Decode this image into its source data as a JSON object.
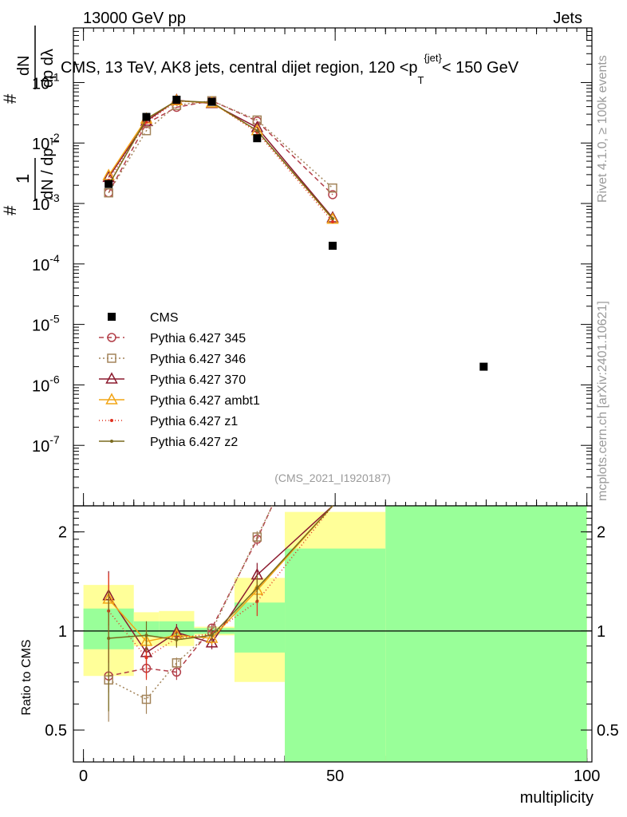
{
  "header": {
    "left": "13000 GeV pp",
    "right": "Jets"
  },
  "side_labels": {
    "rivet": "Rivet 4.1.0, ≥ 100k events",
    "site": "mcplots.cern.ch [arXiv:2401.10621]"
  },
  "colors": {
    "data": "#000000",
    "p345": "#b3404a",
    "p346": "#a3845a",
    "p370": "#8b1a2e",
    "ambt1": "#f2a516",
    "z1": "#e0301e",
    "z2": "#7a6a1e",
    "band_yellow": "#ffff99",
    "band_green": "#99ff99"
  },
  "chart_data": [
    {
      "type": "line",
      "panel": "main",
      "title": "CMS, 13 TeV, AK8 jets, central dijet region, 120 <p_T^{jet}< 150 GeV",
      "ylabel_parts": {
        "frac1_num": "1",
        "frac1_den": "dN / dp",
        "sub_T": "T",
        "frac2_num": "dN",
        "frac2_den": "dp  dλ",
        "hash": "#"
      },
      "yscale": "log",
      "ylim": [
        1e-08,
        0.8
      ],
      "xlim": [
        -2,
        101
      ],
      "yticks": [
        {
          "v": 1e-07,
          "m": "10",
          "e": "-7"
        },
        {
          "v": 1e-06,
          "m": "10",
          "e": "-6"
        },
        {
          "v": 1e-05,
          "m": "10",
          "e": "-5"
        },
        {
          "v": 0.0001,
          "m": "10",
          "e": "-4"
        },
        {
          "v": 0.001,
          "m": "10",
          "e": "-3"
        },
        {
          "v": 0.01,
          "m": "10",
          "e": "-2"
        },
        {
          "v": 0.1,
          "m": "10",
          "e": "-1"
        }
      ],
      "watermark": "(CMS_2021_I1920187)",
      "data": {
        "name": "CMS",
        "x": [
          5,
          12.5,
          18.5,
          25.5,
          34.5,
          49.5,
          79.5
        ],
        "y": [
          0.0021,
          0.027,
          0.052,
          0.048,
          0.012,
          0.0002,
          2e-06
        ]
      },
      "series": [
        {
          "key": "p345",
          "name": "Pythia 6.427 345",
          "dash": "6,4",
          "marker": "circle",
          "x": [
            5,
            12.5,
            18.5,
            25.5,
            34.5,
            49.5
          ],
          "y": [
            0.0015,
            0.021,
            0.039,
            0.05,
            0.023,
            0.0014
          ]
        },
        {
          "key": "p346",
          "name": "Pythia 6.427 346",
          "dash": "2,3",
          "marker": "square",
          "x": [
            5,
            12.5,
            18.5,
            25.5,
            34.5,
            49.5
          ],
          "y": [
            0.0015,
            0.016,
            0.042,
            0.05,
            0.024,
            0.0018
          ]
        },
        {
          "key": "p370",
          "name": "Pythia 6.427 370",
          "dash": "",
          "marker": "triangle",
          "x": [
            5,
            12.5,
            18.5,
            25.5,
            34.5,
            49.5
          ],
          "y": [
            0.0027,
            0.023,
            0.051,
            0.045,
            0.018,
            0.00058
          ]
        },
        {
          "key": "ambt1",
          "name": "Pythia 6.427 ambt1",
          "dash": "",
          "marker": "triangle",
          "x": [
            5,
            12.5,
            18.5,
            25.5,
            34.5,
            49.5
          ],
          "y": [
            0.0029,
            0.025,
            0.05,
            0.046,
            0.016,
            0.00055
          ]
        },
        {
          "key": "z1",
          "name": "Pythia 6.427 z1",
          "dash": "1,3",
          "marker": "dot",
          "x": [
            5,
            12.5,
            18.5,
            25.5,
            34.5,
            49.5
          ],
          "y": [
            0.0024,
            0.022,
            0.049,
            0.047,
            0.015,
            0.0005
          ]
        },
        {
          "key": "z2",
          "name": "Pythia 6.427 z2",
          "dash": "",
          "marker": "dot",
          "x": [
            5,
            12.5,
            18.5,
            25.5,
            34.5,
            49.5
          ],
          "y": [
            0.002,
            0.025,
            0.05,
            0.047,
            0.016,
            0.00056
          ]
        }
      ]
    },
    {
      "type": "line",
      "panel": "ratio",
      "ylabel": "Ratio to CMS",
      "xlabel": "multiplicity",
      "yscale": "log",
      "ylim": [
        0.4,
        2.4
      ],
      "xlim": [
        -2,
        101
      ],
      "xticks": [
        0,
        50,
        100
      ],
      "yticks": [
        0.5,
        1,
        2
      ],
      "bands": [
        {
          "x0": 0,
          "x1": 10,
          "yellow": [
            0.73,
            1.38
          ],
          "green": [
            0.88,
            1.17
          ]
        },
        {
          "x0": 10,
          "x1": 15,
          "yellow": [
            0.9,
            1.14
          ],
          "green": [
            0.96,
            1.07
          ]
        },
        {
          "x0": 15,
          "x1": 22,
          "yellow": [
            0.9,
            1.15
          ],
          "green": [
            0.96,
            1.07
          ]
        },
        {
          "x0": 22,
          "x1": 30,
          "yellow": [
            0.97,
            1.03
          ],
          "green": [
            0.98,
            1.02
          ]
        },
        {
          "x0": 30,
          "x1": 40,
          "yellow": [
            0.7,
            1.45
          ],
          "green": [
            0.86,
            1.22
          ]
        },
        {
          "x0": 40,
          "x1": 60,
          "yellow": [
            0.4,
            2.3
          ],
          "green": [
            0.4,
            1.78
          ]
        },
        {
          "x0": 60,
          "x1": 100,
          "yellow": [
            0.4,
            2.4
          ],
          "green": [
            0.4,
            2.4
          ]
        }
      ],
      "series": [
        {
          "key": "p345",
          "x": [
            5,
            12.5,
            18.5,
            25.5,
            34.5,
            37.5
          ],
          "y": [
            0.73,
            0.77,
            0.75,
            1.02,
            1.9,
            2.4
          ],
          "err": [
            0.08,
            0.05,
            0.04,
            0.03,
            0.08,
            0
          ]
        },
        {
          "key": "p346",
          "x": [
            5,
            12.5,
            18.5,
            25.5,
            34.5,
            37.5
          ],
          "y": [
            0.71,
            0.62,
            0.8,
            1.0,
            1.93,
            2.4
          ],
          "err": [
            0.18,
            0.06,
            0.03,
            0.03,
            0.08,
            0
          ]
        },
        {
          "key": "p370",
          "x": [
            5,
            12.5,
            18.5,
            25.5,
            34.5,
            49.5
          ],
          "y": [
            1.28,
            0.86,
            0.99,
            0.92,
            1.48,
            2.4
          ],
          "err": [
            0.24,
            0.1,
            0.06,
            0.04,
            0.13,
            0
          ]
        },
        {
          "key": "ambt1",
          "x": [
            5,
            12.5,
            18.5,
            25.5,
            34.5,
            49.5
          ],
          "y": [
            1.25,
            0.93,
            0.97,
            0.95,
            1.33,
            2.4
          ],
          "err": [
            0.2,
            0.08,
            0.05,
            0.04,
            0.12,
            0
          ]
        },
        {
          "key": "z1",
          "x": [
            5,
            12.5,
            18.5,
            25.5,
            34.5,
            49.5
          ],
          "y": [
            1.15,
            0.83,
            0.95,
            0.98,
            1.23,
            2.4
          ],
          "err": [
            0.35,
            0.12,
            0.05,
            0.04,
            0.12,
            0
          ]
        },
        {
          "key": "z2",
          "x": [
            5,
            12.5,
            18.5,
            25.5,
            34.5,
            49.5
          ],
          "y": [
            0.95,
            0.97,
            0.94,
            0.97,
            1.35,
            2.4
          ],
          "err": [
            0.38,
            0.1,
            0.05,
            0.04,
            0.13,
            0.5
          ]
        }
      ]
    }
  ]
}
